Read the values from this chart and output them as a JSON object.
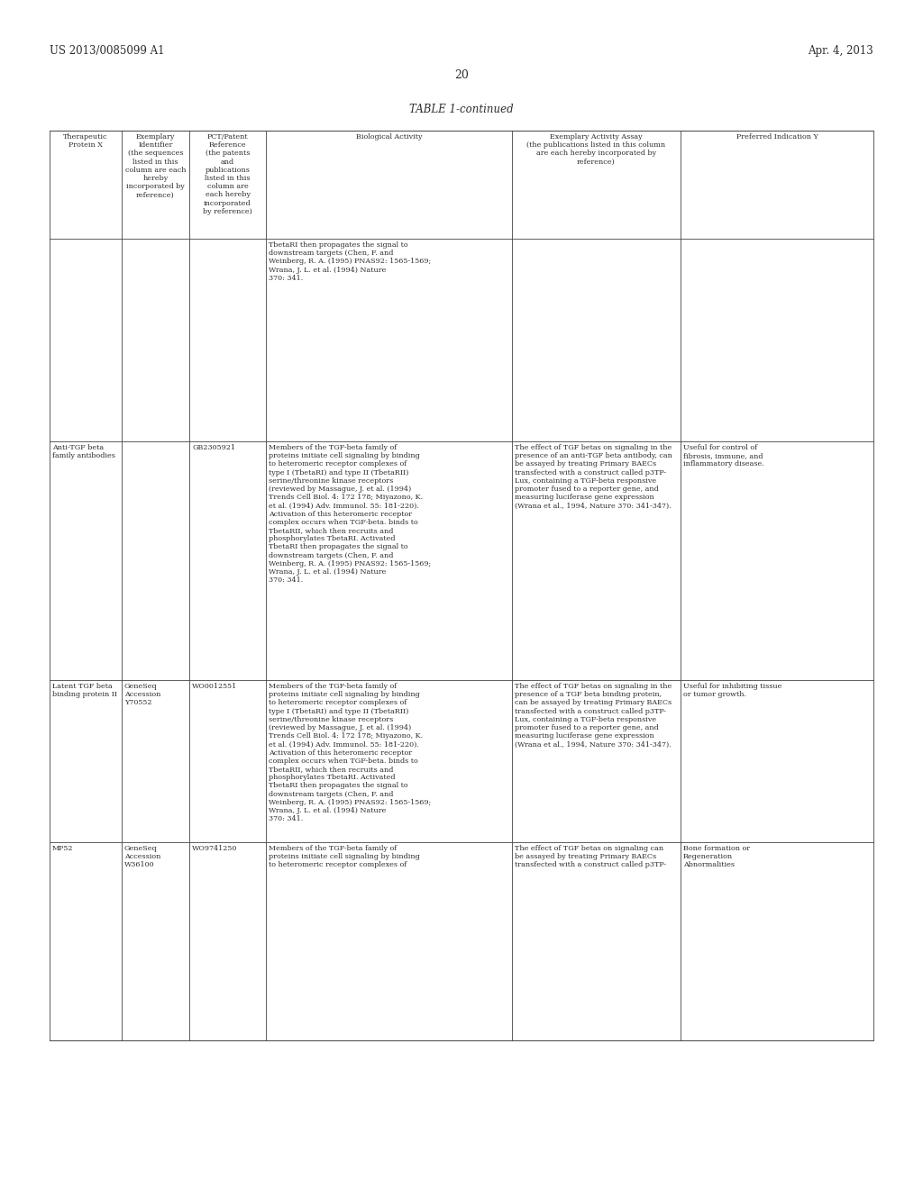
{
  "header_left": "US 2013/0085099 A1",
  "header_right": "Apr. 4, 2013",
  "page_number": "20",
  "table_title": "TABLE 1-continued",
  "bg_color": "#ffffff",
  "text_color": "#2d2d2d",
  "col_headers": [
    "Therapeutic\nProtein X",
    "Exemplary\nIdentifier\n(the sequences\nlisted in this\ncolumn are each\nhereby\nincorporated by\nreference)",
    "PCT/Patent\nReference\n(the patents\nand\npublications\nlisted in this\ncolumn are\neach hereby\nincorporated\nby reference)",
    "Biological Activity",
    "Exemplary Activity Assay\n(the publications listed in this column\nare each hereby incorporated by\nreference)",
    "Preferred Indication Y"
  ],
  "row0_col3": "TbetaRI then propagates the signal to\ndownstream targets (Chen, F. and\nWeinberg, R. A. (1995) PNAS92: 1565-1569;\nWrana, J. L. et al. (1994) Nature\n370: 341.",
  "row1_col0": "Anti-TGF beta\nfamily antibodies",
  "row1_col1": "",
  "row1_col2": "GB2305921",
  "row1_col3": "Members of the TGF-beta family of\nproteins initiate cell signaling by binding\nto heteromeric receptor complexes of\ntype I (TbetaRI) and type II (TbetaRII)\nserine/threonine kinase receptors\n(reviewed by Massague, J. et al. (1994)\nTrends Cell Biol. 4: 172 178; Miyazono, K.\net al. (1994) Adv. Immunol. 55: 181-220).\nActivation of this heteromeric receptor\ncomplex occurs when TGF-beta. binds to\nTbetaRII, which then recruits and\nphosphorylates TbetaRI. Activated\nTbetaRI then propagates the signal to\ndownstream targets (Chen, F. and\nWeinberg, R. A. (1995) PNAS92: 1565-1569;\nWrana, J. L. et al. (1994) Nature\n370: 341.",
  "row1_col4": "The effect of TGF betas on signaling in the\npresence of an anti-TGF beta antibody, can\nbe assayed by treating Primary BAECs\ntransfected with a construct called p3TP-\nLux, containing a TGF-beta responsive\npromoter fused to a reporter gene, and\nmeasuring luciferase gene expression\n(Wrana et al., 1994, Nature 370: 341-347).",
  "row1_col5": "Useful for control of\nfibrosis, immune, and\ninflammatory disease.",
  "row2_col0": "Latent TGF beta\nbinding protein II",
  "row2_col1": "GeneSeq\nAccession\nY70552",
  "row2_col2": "WO0012551",
  "row2_col3": "Members of the TGF-beta family of\nproteins initiate cell signaling by binding\nto heteromeric receptor complexes of\ntype I (TbetaRI) and type II (TbetaRII)\nserine/threonine kinase receptors\n(reviewed by Massague, J. et al. (1994)\nTrends Cell Biol. 4: 172 178; Miyazono, K.\net al. (1994) Adv. Immunol. 55: 181-220).\nActivation of this heteromeric receptor\ncomplex occurs when TGF-beta. binds to\nTbetaRII, which then recruits and\nphosphorylates TbetaRI. Activated\nTbetaRI then propagates the signal to\ndownstream targets (Chen, F. and\nWeinberg, R. A. (1995) PNAS92: 1565-1569;\nWrana, J. L. et al. (1994) Nature\n370: 341.",
  "row2_col4": "The effect of TGF betas on signaling in the\npresence of a TGF beta binding protein,\ncan be assayed by treating Primary BAECs\ntransfected with a construct called p3TP-\nLux, containing a TGF-beta responsive\npromoter fused to a reporter gene, and\nmeasuring luciferase gene expression\n(Wrana et al., 1994, Nature 370: 341-347).",
  "row2_col5": "Useful for inhibiting tissue\nor tumor growth.",
  "row3_col0": "MP52",
  "row3_col1": "GeneSeq\nAccession\nW36100",
  "row3_col2": "WO9741250",
  "row3_col3": "Members of the TGF-beta family of\nproteins initiate cell signaling by binding\nto heteromeric receptor complexes of",
  "row3_col4": "The effect of TGF betas on signaling can\nbe assayed by treating Primary BAECs\ntransfected with a construct called p3TP-",
  "row3_col5": "Bone formation or\nRegeneration\nAbnormalities"
}
